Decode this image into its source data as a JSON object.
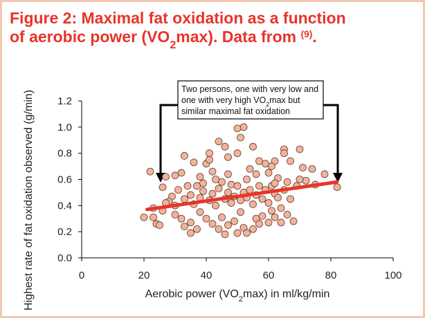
{
  "chart_data": {
    "type": "scatter",
    "title": [
      [
        {
          "text": "Figure 2: Maximal fat oxidation as a function"
        }
      ],
      [
        {
          "text": "of aerobic power (VO"
        },
        {
          "text": "2",
          "sub": true
        },
        {
          "text": "max). Data from "
        },
        {
          "text": "(9)",
          "sup": true
        },
        {
          "text": "."
        }
      ]
    ],
    "x_label": [
      {
        "text": "Aerobic power (VO"
      },
      {
        "text": "2",
        "sub": true
      },
      {
        "text": "max) in ml/kg/min"
      }
    ],
    "y_label": "Highest rate of fat oxidation observed (g/min)",
    "annotation": [
      [
        {
          "text": "Two persons, one with very low and"
        }
      ],
      [
        {
          "text": "one with very high VO"
        },
        {
          "text": "2",
          "sub": true
        },
        {
          "text": "max but"
        }
      ],
      [
        {
          "text": "similar maximal fat oxidation"
        }
      ]
    ],
    "xlim": [
      0,
      100
    ],
    "xticks": [
      0,
      20,
      40,
      60,
      80,
      100
    ],
    "ylim": [
      0,
      1.2
    ],
    "yticks": [
      {
        "value": 0,
        "label": "0.0"
      },
      {
        "value": 0.2,
        "label": "0.2"
      },
      {
        "value": 0.4,
        "label": "0.4"
      },
      {
        "value": 0.6,
        "label": "0.6"
      },
      {
        "value": 0.8,
        "label": "0.8"
      },
      {
        "value": 1.0,
        "label": "1.0"
      },
      {
        "value": 1.2,
        "label": "1.2"
      }
    ],
    "grid": false,
    "color": "#f3b39b",
    "trend_color": "#e8352a",
    "trend_line": {
      "x": [
        21,
        82
      ],
      "y": [
        0.37,
        0.58
      ]
    },
    "x": [
      52,
      50,
      51,
      44,
      22,
      26,
      82,
      20,
      24,
      25,
      35,
      46,
      50,
      70,
      65,
      78,
      74,
      72,
      68,
      33,
      32,
      30,
      27,
      29,
      28,
      36,
      40,
      41,
      41,
      46,
      47,
      50,
      55,
      54,
      57,
      59,
      62,
      65,
      67,
      71,
      63,
      60,
      61,
      56,
      53,
      48,
      45,
      43,
      39,
      37,
      34,
      31,
      23,
      23,
      26,
      27,
      30,
      32,
      33,
      35,
      37,
      38,
      40,
      42,
      44,
      45,
      47,
      49,
      51,
      52,
      53,
      55,
      56,
      57,
      58,
      60,
      61,
      62,
      64,
      64,
      66,
      30,
      33,
      35,
      36,
      38,
      39,
      41,
      42,
      43,
      44,
      46,
      47,
      48,
      49,
      50,
      51,
      52,
      53,
      54,
      55,
      56,
      57,
      58,
      59,
      60,
      61,
      62,
      63,
      65,
      66,
      67,
      69,
      70,
      75,
      62,
      47,
      42,
      38
    ],
    "y": [
      1.0,
      0.99,
      0.92,
      0.89,
      0.66,
      0.54,
      0.54,
      0.31,
      0.26,
      0.25,
      0.19,
      0.18,
      0.19,
      0.83,
      0.83,
      0.64,
      0.68,
      0.59,
      0.28,
      0.78,
      0.65,
      0.63,
      0.62,
      0.47,
      0.43,
      0.73,
      0.72,
      0.75,
      0.8,
      0.85,
      0.77,
      0.8,
      0.85,
      0.68,
      0.74,
      0.72,
      0.74,
      0.8,
      0.74,
      0.69,
      0.61,
      0.65,
      0.7,
      0.64,
      0.6,
      0.56,
      0.58,
      0.6,
      0.57,
      0.55,
      0.55,
      0.52,
      0.38,
      0.31,
      0.36,
      0.42,
      0.33,
      0.3,
      0.24,
      0.27,
      0.22,
      0.35,
      0.3,
      0.26,
      0.22,
      0.31,
      0.25,
      0.28,
      0.35,
      0.23,
      0.19,
      0.22,
      0.3,
      0.26,
      0.32,
      0.27,
      0.36,
      0.31,
      0.38,
      0.27,
      0.33,
      0.4,
      0.45,
      0.48,
      0.41,
      0.46,
      0.51,
      0.44,
      0.49,
      0.4,
      0.53,
      0.45,
      0.5,
      0.42,
      0.47,
      0.55,
      0.44,
      0.5,
      0.46,
      0.52,
      0.41,
      0.48,
      0.55,
      0.45,
      0.52,
      0.42,
      0.55,
      0.49,
      0.46,
      0.52,
      0.58,
      0.45,
      0.55,
      0.6,
      0.56,
      0.57,
      0.64,
      0.66,
      0.62
    ]
  }
}
